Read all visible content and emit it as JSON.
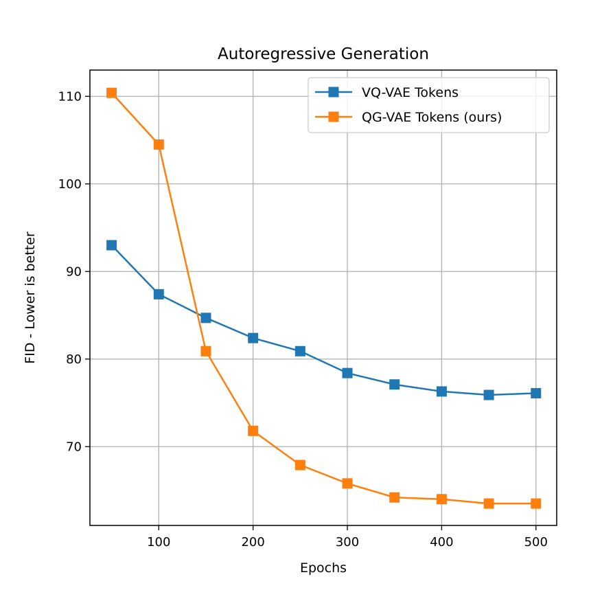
{
  "chart_data": {
    "type": "line",
    "title": "Autoregressive Generation",
    "xlabel": "Epochs",
    "ylabel": "FID - Lower is better",
    "x": [
      50,
      100,
      150,
      200,
      250,
      300,
      350,
      400,
      450,
      500
    ],
    "xlim": [
      27,
      522
    ],
    "ylim": [
      61,
      113
    ],
    "xticks": [
      100,
      200,
      300,
      400,
      500
    ],
    "yticks": [
      70,
      80,
      90,
      100,
      110
    ],
    "grid": true,
    "legend_position": "top-right",
    "marker": "square",
    "series": [
      {
        "name": "VQ-VAE Tokens",
        "color": "#1f77b4",
        "values": [
          93.0,
          87.4,
          84.7,
          82.4,
          80.9,
          78.4,
          77.1,
          76.3,
          75.9,
          76.1
        ]
      },
      {
        "name": "QG-VAE Tokens (ours)",
        "color": "#ff7f0e",
        "values": [
          110.4,
          104.5,
          80.9,
          71.8,
          67.9,
          65.8,
          64.2,
          64.0,
          63.5,
          63.5
        ]
      }
    ]
  }
}
